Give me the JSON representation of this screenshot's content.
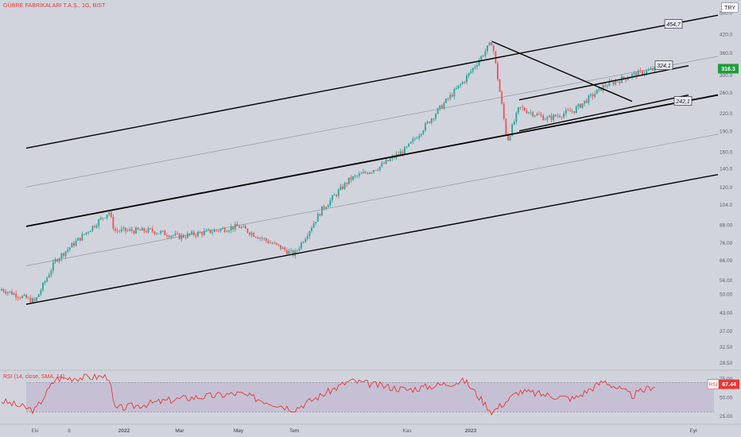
{
  "header": {
    "title": "GÜBRE FABRİKALARI T.A.Ş., 1G, BIST",
    "currency": "TRY"
  },
  "chart_data": {
    "type": "candlestick",
    "scale": "log",
    "grid": false,
    "price_axis": {
      "ticks": [
        "500.0",
        "420.0",
        "360.0",
        "300.0",
        "260.0",
        "220.0",
        "190.0",
        "160.0",
        "140.0",
        "120.0",
        "104.0",
        "88.00",
        "76.00",
        "66.00",
        "56.00",
        "50.00",
        "43.00",
        "37.00",
        "32.50",
        "28.50"
      ],
      "ylim": [
        27.5,
        520
      ]
    },
    "time_axis": {
      "labels": [
        "Eki",
        "8",
        "2022",
        "Mar",
        "May",
        "Tem",
        "Eyl",
        "Kas",
        "2023",
        "Mar",
        "May",
        "Tem",
        "Eyl"
      ]
    },
    "last_price": "316.3",
    "annotations": [
      {
        "text": "454,7",
        "price": 454.7
      },
      {
        "text": "324,1",
        "price": 324.1
      },
      {
        "text": "242,1",
        "price": 242.1
      }
    ],
    "trend_lines": [
      {
        "name": "Channel upper",
        "from": [
          "Eki",
          165
        ],
        "to": [
          "Eyl",
          490
        ]
      },
      {
        "name": "Channel middle",
        "from": [
          "Eki",
          87
        ],
        "to": [
          "Eyl",
          255
        ]
      },
      {
        "name": "Channel lower",
        "from": [
          "Eki",
          46
        ],
        "to": [
          "Eyl",
          133
        ]
      },
      {
        "name": "Upper middle guide",
        "from": [
          "Eki",
          120
        ],
        "to": [
          "Eyl",
          350
        ]
      },
      {
        "name": "Lower middle guide",
        "from": [
          "Eki",
          63
        ],
        "to": [
          "Eyl",
          185
        ]
      },
      {
        "name": "Downtrend",
        "from": [
          "Şub 2023",
          395
        ],
        "to": [
          "Tem 2023",
          242.1
        ]
      },
      {
        "name": "Short channel top",
        "from": [
          "Mar 2023",
          245
        ],
        "to": [
          "Ağu 2023",
          324.1
        ]
      },
      {
        "name": "Short channel bottom",
        "from": [
          "Mar 2023",
          190
        ],
        "to": [
          "Ağu 2023",
          255
        ]
      }
    ],
    "price_series_checkpoints": [
      {
        "t": "Eyl 2021",
        "close": 52
      },
      {
        "t": "Eki 2021",
        "close": 47
      },
      {
        "t": "Kas 2021",
        "close": 66
      },
      {
        "t": "Ara 2021",
        "close": 98
      },
      {
        "t": "Ara 2021 b",
        "close": 84
      },
      {
        "t": "Şub 2022",
        "close": 84
      },
      {
        "t": "Mar 2022",
        "close": 80
      },
      {
        "t": "May 2022",
        "close": 87
      },
      {
        "t": "Tem 2022",
        "close": 69
      },
      {
        "t": "Ağu 2022",
        "close": 100
      },
      {
        "t": "Eyl 2022",
        "close": 128
      },
      {
        "t": "Eki 2022",
        "close": 142
      },
      {
        "t": "Kas 2022",
        "close": 165
      },
      {
        "t": "Ara 2022",
        "close": 220
      },
      {
        "t": "Oca 2023",
        "close": 290
      },
      {
        "t": "Şub 2023",
        "close": 395
      },
      {
        "t": "Şub 2023 b",
        "close": 175
      },
      {
        "t": "Mar 2023",
        "close": 230
      },
      {
        "t": "Nis 2023",
        "close": 210
      },
      {
        "t": "May 2023",
        "close": 225
      },
      {
        "t": "Haz 2023",
        "close": 275
      },
      {
        "t": "Tem 2023",
        "close": 300
      },
      {
        "t": "Tem 2023 b",
        "close": 316.3
      }
    ],
    "rsi": {
      "title": "RSI (14, close, SMA, 14)",
      "value_label": "67.44",
      "value_tag": "RSI",
      "ticks": [
        "75.00",
        "50.00",
        "25.00"
      ],
      "ylim": [
        20,
        82
      ],
      "overbought": 70,
      "oversold": 30,
      "checkpoints": [
        {
          "t": "Eyl 2021",
          "v": 45
        },
        {
          "t": "Eki 2021",
          "v": 32
        },
        {
          "t": "Kas 2021",
          "v": 75
        },
        {
          "t": "Ara 2021",
          "v": 78
        },
        {
          "t": "Ara 2021 b",
          "v": 34
        },
        {
          "t": "Mar 2022",
          "v": 48
        },
        {
          "t": "May 2022",
          "v": 55
        },
        {
          "t": "Tem 2022",
          "v": 34
        },
        {
          "t": "Eyl 2022",
          "v": 72
        },
        {
          "t": "Kas 2022",
          "v": 60
        },
        {
          "t": "Oca 2023",
          "v": 72
        },
        {
          "t": "Şub 2023",
          "v": 30
        },
        {
          "t": "Mar 2023",
          "v": 58
        },
        {
          "t": "May 2023",
          "v": 48
        },
        {
          "t": "Haz 2023",
          "v": 72
        },
        {
          "t": "Tem 2023",
          "v": 52
        },
        {
          "t": "Tem 2023 b",
          "v": 67.44
        }
      ]
    },
    "colors": {
      "up": "#26a69a",
      "down": "#ef5350",
      "trend": "#000000",
      "guide": "#8a8e97",
      "rsi_line": "#e53935",
      "rsi_band": "#b9a8c9",
      "last_price_bg": "#1e9e3c"
    }
  }
}
